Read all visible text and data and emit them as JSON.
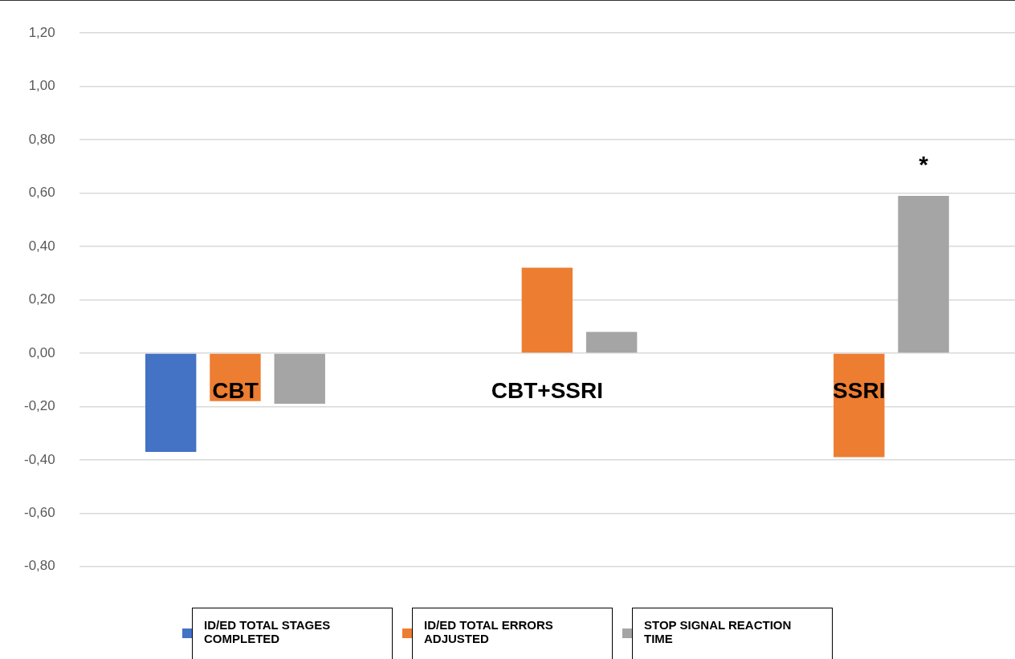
{
  "chart_data": {
    "type": "bar",
    "categories": [
      "CBT",
      "CBT+SSRI",
      "SSRI"
    ],
    "series": [
      {
        "name": "ID/ED TOTAL STAGES COMPLETED",
        "color": "#4472c4",
        "values": [
          -0.37,
          null,
          null
        ]
      },
      {
        "name": "ID/ED TOTAL ERRORS ADJUSTED",
        "color": "#ed7d31",
        "values": [
          -0.18,
          0.32,
          -0.39
        ]
      },
      {
        "name": "STOP SIGNAL REACTION TIME",
        "color": "#a5a5a5",
        "values": [
          -0.19,
          0.08,
          0.59
        ]
      }
    ],
    "ylim": [
      -0.8,
      1.2
    ],
    "yticks": [
      {
        "value": -0.8,
        "label": "-0,80"
      },
      {
        "value": -0.6,
        "label": "-0,60"
      },
      {
        "value": -0.4,
        "label": "-0,40"
      },
      {
        "value": -0.2,
        "label": "-0,20"
      },
      {
        "value": 0,
        "label": "0,00"
      },
      {
        "value": 0.2,
        "label": "0,20"
      },
      {
        "value": 0.4,
        "label": "0,40"
      },
      {
        "value": 0.6,
        "label": "0,60"
      },
      {
        "value": 0.8,
        "label": "0,80"
      },
      {
        "value": 1,
        "label": "1,00"
      },
      {
        "value": 1.2,
        "label": "1,20"
      }
    ],
    "grid": "y",
    "legend": "bottom",
    "annotations": [
      "*"
    ]
  }
}
